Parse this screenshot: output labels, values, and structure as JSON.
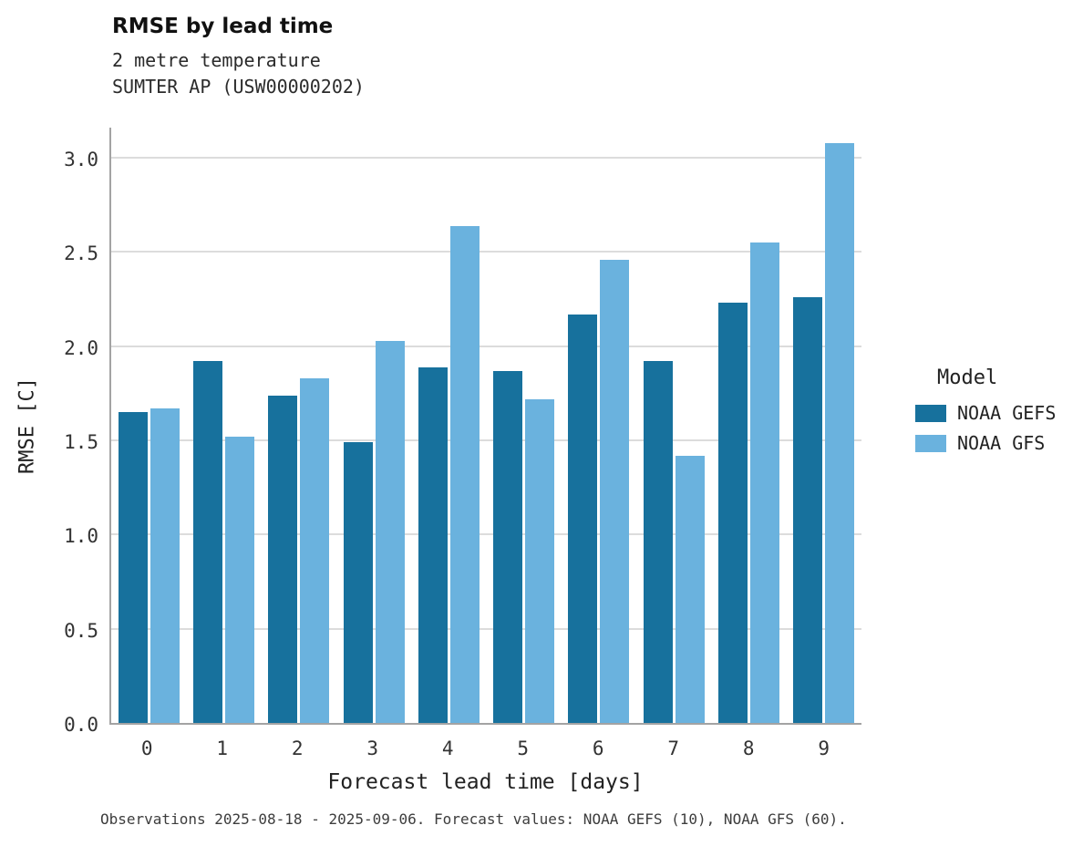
{
  "header": {
    "title": "RMSE by lead time",
    "subtitle1": "2 metre temperature",
    "subtitle2": "SUMTER AP (USW00000202)"
  },
  "chart_data": {
    "type": "bar",
    "title": "RMSE by lead time",
    "subtitle": [
      "2 metre temperature",
      "SUMTER AP (USW00000202)"
    ],
    "categories": [
      "0",
      "1",
      "2",
      "3",
      "4",
      "5",
      "6",
      "7",
      "8",
      "9"
    ],
    "series": [
      {
        "name": "NOAA GEFS",
        "color": "#17719d",
        "values": [
          1.65,
          1.92,
          1.74,
          1.49,
          1.89,
          1.87,
          2.17,
          1.92,
          2.23,
          2.26
        ]
      },
      {
        "name": "NOAA GFS",
        "color": "#6ab2de",
        "values": [
          1.67,
          1.52,
          1.83,
          2.03,
          2.64,
          1.72,
          2.46,
          1.42,
          2.55,
          3.08
        ]
      }
    ],
    "xlabel": "Forecast lead time [days]",
    "ylabel": "RMSE [C]",
    "ylim": [
      0,
      3.17
    ],
    "yticks": [
      0.0,
      0.5,
      1.0,
      1.5,
      2.0,
      2.5,
      3.0
    ],
    "legend_title": "Model",
    "legend_position": "right",
    "grid": "horizontal-major"
  },
  "caption": "Observations 2025-08-18 - 2025-09-06. Forecast values: NOAA GEFS (10), NOAA GFS (60)."
}
